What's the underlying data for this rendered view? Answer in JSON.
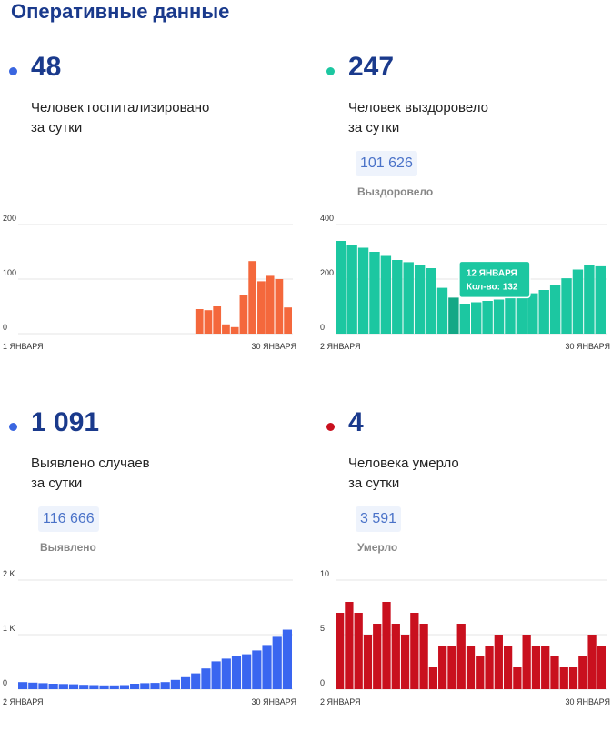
{
  "header": {
    "title": "Оперативные данные"
  },
  "panels": [
    {
      "id": "hospitalized",
      "value": "48",
      "desc_line1": "Человек госпитализировано",
      "desc_line2": "за сутки",
      "color": "#f4683c",
      "dot_color": "#3a66e0"
    },
    {
      "id": "recovered",
      "value": "247",
      "desc_line1": "Человек выздоровело",
      "desc_line2": "за сутки",
      "total": "101 626",
      "total_label": "Выздоровело",
      "color": "#1cc7a1",
      "dot_color": "#1cc7a1",
      "tooltip": {
        "title": "12 ЯНВАРЯ",
        "text": "Кол-во: 132"
      }
    },
    {
      "id": "cases",
      "value": "1 091",
      "desc_line1": "Выявлено случаев",
      "desc_line2": "за сутки",
      "total": "116 666",
      "total_label": "Выявлено",
      "color": "#3a66f0",
      "dot_color": "#3a66e0"
    },
    {
      "id": "deaths",
      "value": "4",
      "desc_line1": "Человека умерло",
      "desc_line2": "за сутки",
      "total": "3 591",
      "total_label": "Умерло",
      "color": "#c9101e",
      "dot_color": "#c9101e"
    }
  ],
  "chart_data": [
    {
      "type": "bar",
      "title": "Человек госпитализировано за сутки",
      "x_start_label": "1 ЯНВАРЯ",
      "x_end_label": "30 ЯНВАРЯ",
      "ylim": [
        0,
        200
      ],
      "yticks": [
        0,
        100,
        200
      ],
      "ytick_labels": [
        "0",
        "100",
        "200"
      ],
      "values": [
        0,
        0,
        0,
        0,
        0,
        0,
        0,
        0,
        0,
        0,
        0,
        0,
        0,
        0,
        0,
        0,
        0,
        0,
        0,
        0,
        45,
        43,
        50,
        17,
        12,
        70,
        133,
        96,
        106,
        100,
        48
      ]
    },
    {
      "type": "bar",
      "title": "Человек выздоровело за сутки",
      "x_start_label": "2 ЯНВАРЯ",
      "x_end_label": "30 ЯНВАРЯ",
      "ylim": [
        0,
        400
      ],
      "yticks": [
        0,
        200,
        400
      ],
      "ytick_labels": [
        "0",
        "200",
        "400"
      ],
      "highlight_index": 10,
      "values": [
        340,
        325,
        315,
        300,
        285,
        270,
        262,
        250,
        240,
        168,
        132,
        110,
        115,
        120,
        125,
        138,
        142,
        148,
        160,
        180,
        203,
        235,
        252,
        247
      ]
    },
    {
      "type": "bar",
      "title": "Выявлено случаев за сутки",
      "x_start_label": "2 ЯНВАРЯ",
      "x_end_label": "30 ЯНВАРЯ",
      "ylim": [
        0,
        2000
      ],
      "yticks": [
        0,
        1000,
        2000
      ],
      "ytick_labels": [
        "0",
        "1 K",
        "2 K"
      ],
      "values": [
        130,
        120,
        110,
        100,
        95,
        90,
        80,
        75,
        70,
        70,
        75,
        100,
        110,
        115,
        130,
        170,
        220,
        290,
        380,
        510,
        560,
        600,
        640,
        710,
        810,
        960,
        1091
      ]
    },
    {
      "type": "bar",
      "title": "Человека умерло за сутки",
      "x_start_label": "2 ЯНВАРЯ",
      "x_end_label": "30 ЯНВАРЯ",
      "ylim": [
        0,
        10
      ],
      "yticks": [
        0,
        5,
        10
      ],
      "ytick_labels": [
        "0",
        "5",
        "10"
      ],
      "values": [
        7,
        8,
        7,
        5,
        6,
        8,
        6,
        5,
        7,
        6,
        2,
        4,
        4,
        6,
        4,
        3,
        4,
        5,
        4,
        2,
        5,
        4,
        4,
        3,
        2,
        2,
        3,
        5,
        4
      ]
    }
  ]
}
